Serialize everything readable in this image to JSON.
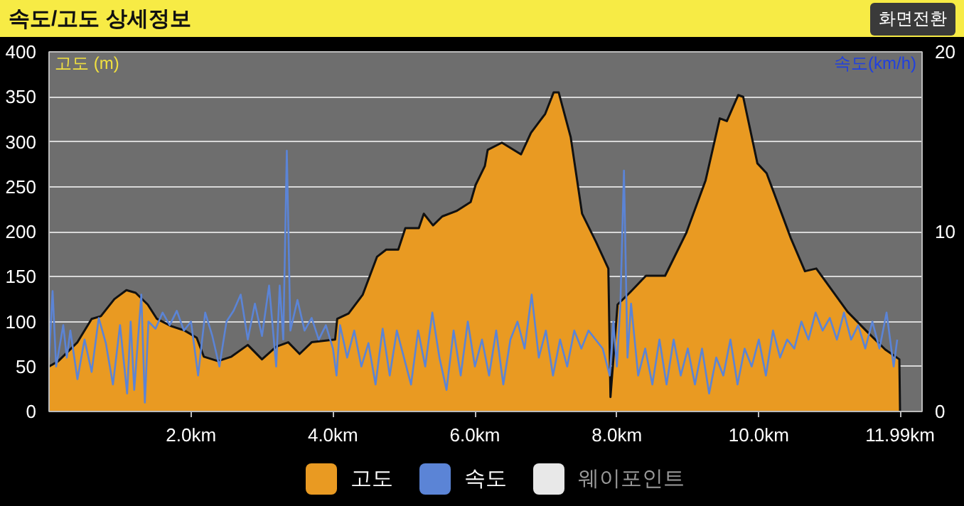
{
  "chart_data": {
    "type": "area",
    "title": "속도/고도 상세정보",
    "ylabel": "고도 (m)",
    "y2label": "속도(km/h)",
    "annotations": [
      "화면전환",
      "웨이포인트"
    ],
    "xlim": [
      0,
      12.3
    ],
    "xticks": [
      {
        "value": 2,
        "label": "2.0km"
      },
      {
        "value": 4,
        "label": "4.0km"
      },
      {
        "value": 6,
        "label": "6.0km"
      },
      {
        "value": 8,
        "label": "8.0km"
      },
      {
        "value": 10,
        "label": "10.0km"
      },
      {
        "value": 11.99,
        "label": "11.99km"
      }
    ],
    "ylim": [
      0,
      400
    ],
    "yticks": [
      0,
      50,
      100,
      150,
      200,
      250,
      300,
      350,
      400
    ],
    "y2lim": [
      0,
      20
    ],
    "y2ticks": [
      0,
      10,
      20
    ],
    "grid": "y",
    "legend": "bottom",
    "series": [
      {
        "name": "고도",
        "color": "#e99a22",
        "x": [
          0,
          0.13,
          0.4,
          0.6,
          0.73,
          0.92,
          1.09,
          1.22,
          1.39,
          1.52,
          1.72,
          1.91,
          2.08,
          2.18,
          2.38,
          2.57,
          2.8,
          3.0,
          3.2,
          3.37,
          3.53,
          3.7,
          4.03,
          4.06,
          4.22,
          4.42,
          4.62,
          4.75,
          4.92,
          5.02,
          5.21,
          5.28,
          5.41,
          5.54,
          5.74,
          5.94,
          6.01,
          6.14,
          6.18,
          6.38,
          6.65,
          6.79,
          6.99,
          7.11,
          7.18,
          7.35,
          7.51,
          7.71,
          7.88,
          7.91,
          8.01,
          8.18,
          8.41,
          8.68,
          8.98,
          9.25,
          9.45,
          9.55,
          9.71,
          9.78,
          9.98,
          10.11,
          10.45,
          10.65,
          10.81,
          11.25,
          11.51,
          11.78,
          11.98,
          11.99
        ],
        "values": [
          50,
          56,
          77,
          103,
          106,
          125,
          135,
          132,
          119,
          103,
          95,
          90,
          82,
          61,
          56,
          61,
          74,
          58,
          72,
          77,
          64,
          77,
          80,
          103,
          109,
          130,
          172,
          180,
          180,
          204,
          204,
          220,
          207,
          217,
          223,
          233,
          252,
          273,
          291,
          299,
          286,
          310,
          331,
          355,
          355,
          305,
          220,
          188,
          159,
          16,
          119,
          132,
          151,
          151,
          199,
          257,
          326,
          323,
          352,
          350,
          276,
          265,
          193,
          156,
          159,
          111,
          90,
          69,
          58,
          0
        ]
      },
      {
        "name": "속도",
        "type": "line",
        "axis": "y2",
        "color": "#5b84d6",
        "x": [
          0,
          0.05,
          0.1,
          0.2,
          0.25,
          0.3,
          0.4,
          0.5,
          0.6,
          0.7,
          0.8,
          0.9,
          1.0,
          1.1,
          1.15,
          1.2,
          1.3,
          1.35,
          1.4,
          1.5,
          1.6,
          1.7,
          1.8,
          1.9,
          2.0,
          2.1,
          2.2,
          2.3,
          2.4,
          2.5,
          2.6,
          2.7,
          2.8,
          2.9,
          3.0,
          3.1,
          3.2,
          3.25,
          3.3,
          3.35,
          3.4,
          3.5,
          3.6,
          3.7,
          3.8,
          3.9,
          4.0,
          4.05,
          4.1,
          4.2,
          4.3,
          4.4,
          4.5,
          4.6,
          4.7,
          4.8,
          4.9,
          5.0,
          5.1,
          5.2,
          5.3,
          5.4,
          5.5,
          5.6,
          5.7,
          5.8,
          5.9,
          6.0,
          6.1,
          6.2,
          6.3,
          6.4,
          6.5,
          6.6,
          6.7,
          6.8,
          6.9,
          7.0,
          7.1,
          7.2,
          7.3,
          7.4,
          7.5,
          7.6,
          7.7,
          7.8,
          7.9,
          7.95,
          8.0,
          8.05,
          8.1,
          8.15,
          8.2,
          8.3,
          8.4,
          8.5,
          8.6,
          8.7,
          8.8,
          8.9,
          9.0,
          9.1,
          9.2,
          9.3,
          9.4,
          9.5,
          9.6,
          9.7,
          9.8,
          9.9,
          10.0,
          10.1,
          10.2,
          10.3,
          10.4,
          10.5,
          10.6,
          10.7,
          10.8,
          10.9,
          11.0,
          11.1,
          11.2,
          11.3,
          11.4,
          11.5,
          11.6,
          11.7,
          11.8,
          11.9,
          11.95
        ],
        "values": [
          3.0,
          6.7,
          2.5,
          4.8,
          3.0,
          4.5,
          1.8,
          4.0,
          2.2,
          5.2,
          3.8,
          1.5,
          4.8,
          1.0,
          5.0,
          1.2,
          6.5,
          0.5,
          5.0,
          4.6,
          5.5,
          4.8,
          5.6,
          4.5,
          5.0,
          2.0,
          5.5,
          4.2,
          2.5,
          5.0,
          5.6,
          6.5,
          4.0,
          6.0,
          4.2,
          7.0,
          2.5,
          7.0,
          4.0,
          14.5,
          4.5,
          6.2,
          4.5,
          5.2,
          4.0,
          4.8,
          3.5,
          2.0,
          4.8,
          3.0,
          4.5,
          2.5,
          3.8,
          1.5,
          4.6,
          2.0,
          4.5,
          3.0,
          1.5,
          4.5,
          2.5,
          5.5,
          3.0,
          1.2,
          4.5,
          2.0,
          5.0,
          2.5,
          4.0,
          2.0,
          4.5,
          1.5,
          4.0,
          5.0,
          3.5,
          6.5,
          3.0,
          4.5,
          2.0,
          4.0,
          2.5,
          4.5,
          3.5,
          4.5,
          4.0,
          3.5,
          2.0,
          5.0,
          2.5,
          6.0,
          13.4,
          3.0,
          6.0,
          2.0,
          3.5,
          1.5,
          4.0,
          1.5,
          4.0,
          2.0,
          3.5,
          1.5,
          3.5,
          1.0,
          3.0,
          2.0,
          4.0,
          1.5,
          3.5,
          2.5,
          4.0,
          2.0,
          4.5,
          3.0,
          4.0,
          3.5,
          5.0,
          4.0,
          5.5,
          4.5,
          5.2,
          4.0,
          5.5,
          4.0,
          4.8,
          3.5,
          5.0,
          3.5,
          5.5,
          2.5,
          4.0
        ]
      }
    ]
  }
}
